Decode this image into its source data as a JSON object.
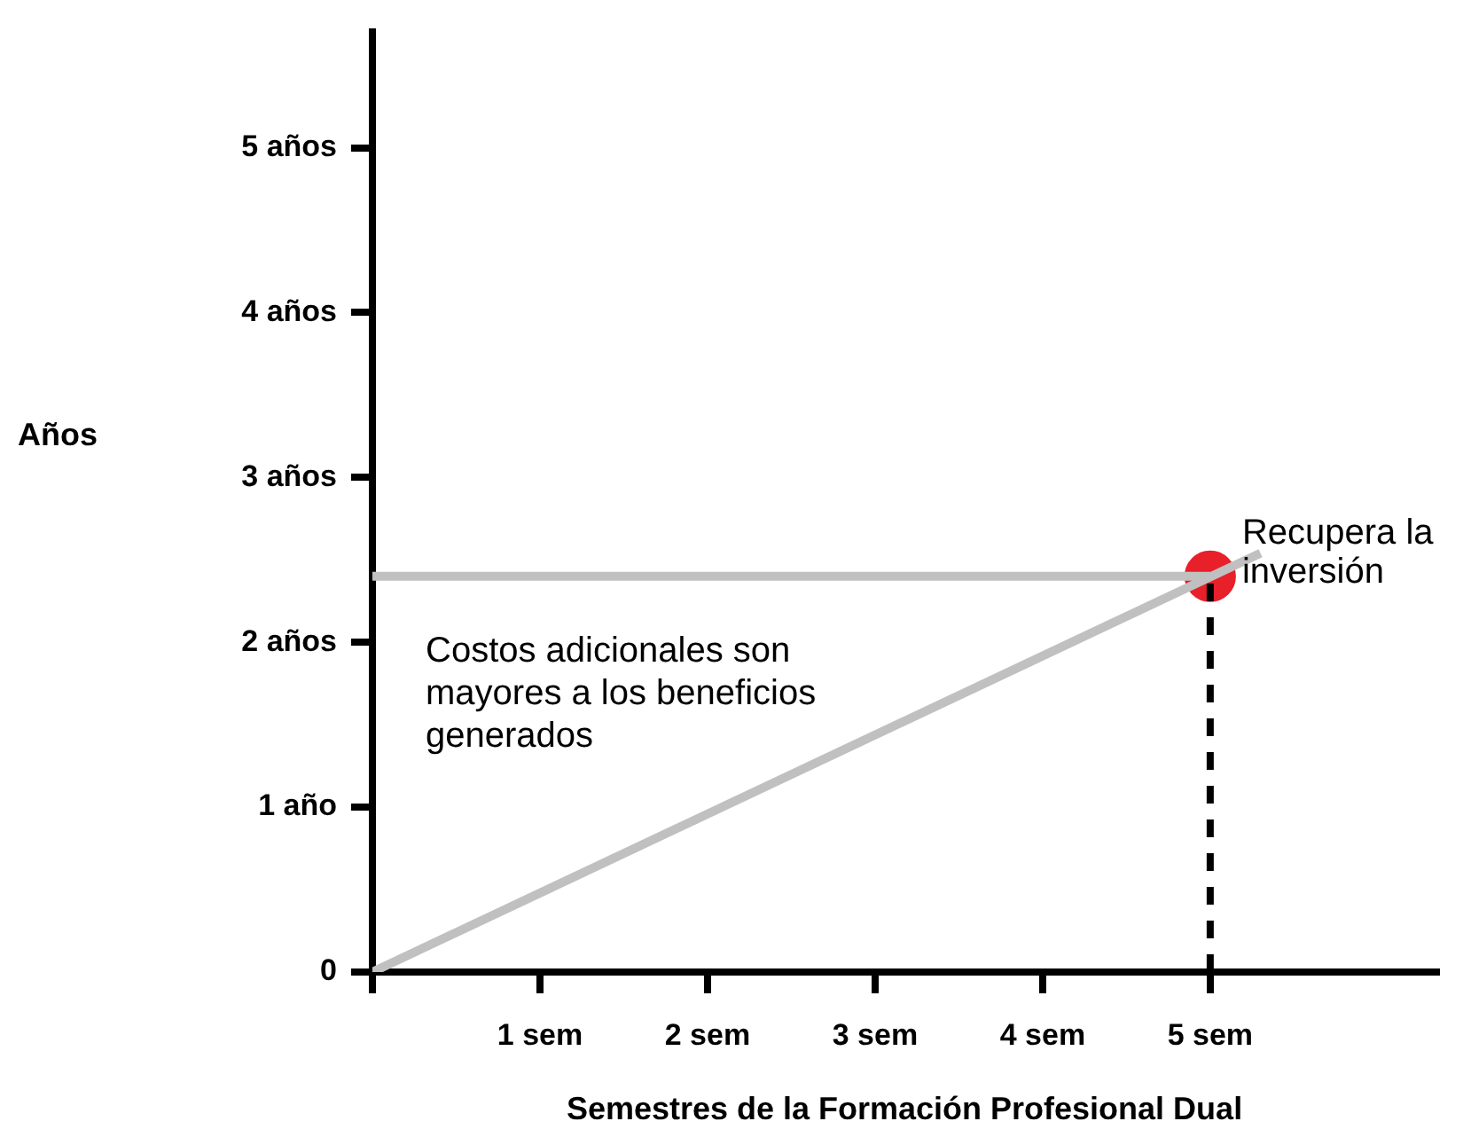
{
  "chart_data": {
    "type": "line",
    "xlabel": "Semestres de la Formación Profesional Dual",
    "ylabel": "Años",
    "xlim": [
      0,
      6.35
    ],
    "ylim": [
      0,
      5.7
    ],
    "xticks": [
      {
        "value": 0,
        "label": null
      },
      {
        "value": 1,
        "label": "1 sem"
      },
      {
        "value": 2,
        "label": "2 sem"
      },
      {
        "value": 3,
        "label": "3 sem"
      },
      {
        "value": 4,
        "label": "4 sem"
      },
      {
        "value": 5,
        "label": "5 sem"
      }
    ],
    "yticks": [
      {
        "value": 0,
        "label": "0"
      },
      {
        "value": 1,
        "label": "1 año"
      },
      {
        "value": 2,
        "label": "2 años"
      },
      {
        "value": 3,
        "label": "3 años"
      },
      {
        "value": 4,
        "label": "4 años"
      },
      {
        "value": 5,
        "label": "5 años"
      }
    ],
    "grid": false,
    "legend": false,
    "marker": "none",
    "series": [
      {
        "color": "#c0c0c0",
        "x": [
          0,
          5
        ],
        "values": [
          2.4,
          2.4
        ]
      },
      {
        "color": "#c0c0c0",
        "x": [
          0,
          5.3
        ],
        "values": [
          0,
          2.54
        ]
      },
      {
        "color": "#000000",
        "line_style": "dashed",
        "x": [
          5,
          5
        ],
        "values": [
          0,
          2.4
        ]
      },
      {
        "type": "scatter",
        "color": "#e8202a",
        "marker": "circle",
        "x": [
          5
        ],
        "values": [
          2.4
        ]
      }
    ],
    "annotations": [
      "Costos adicionales son mayores a los beneficios generados",
      {
        "text": "Recupera la inversión",
        "x": 5,
        "y": 2.4
      }
    ]
  }
}
